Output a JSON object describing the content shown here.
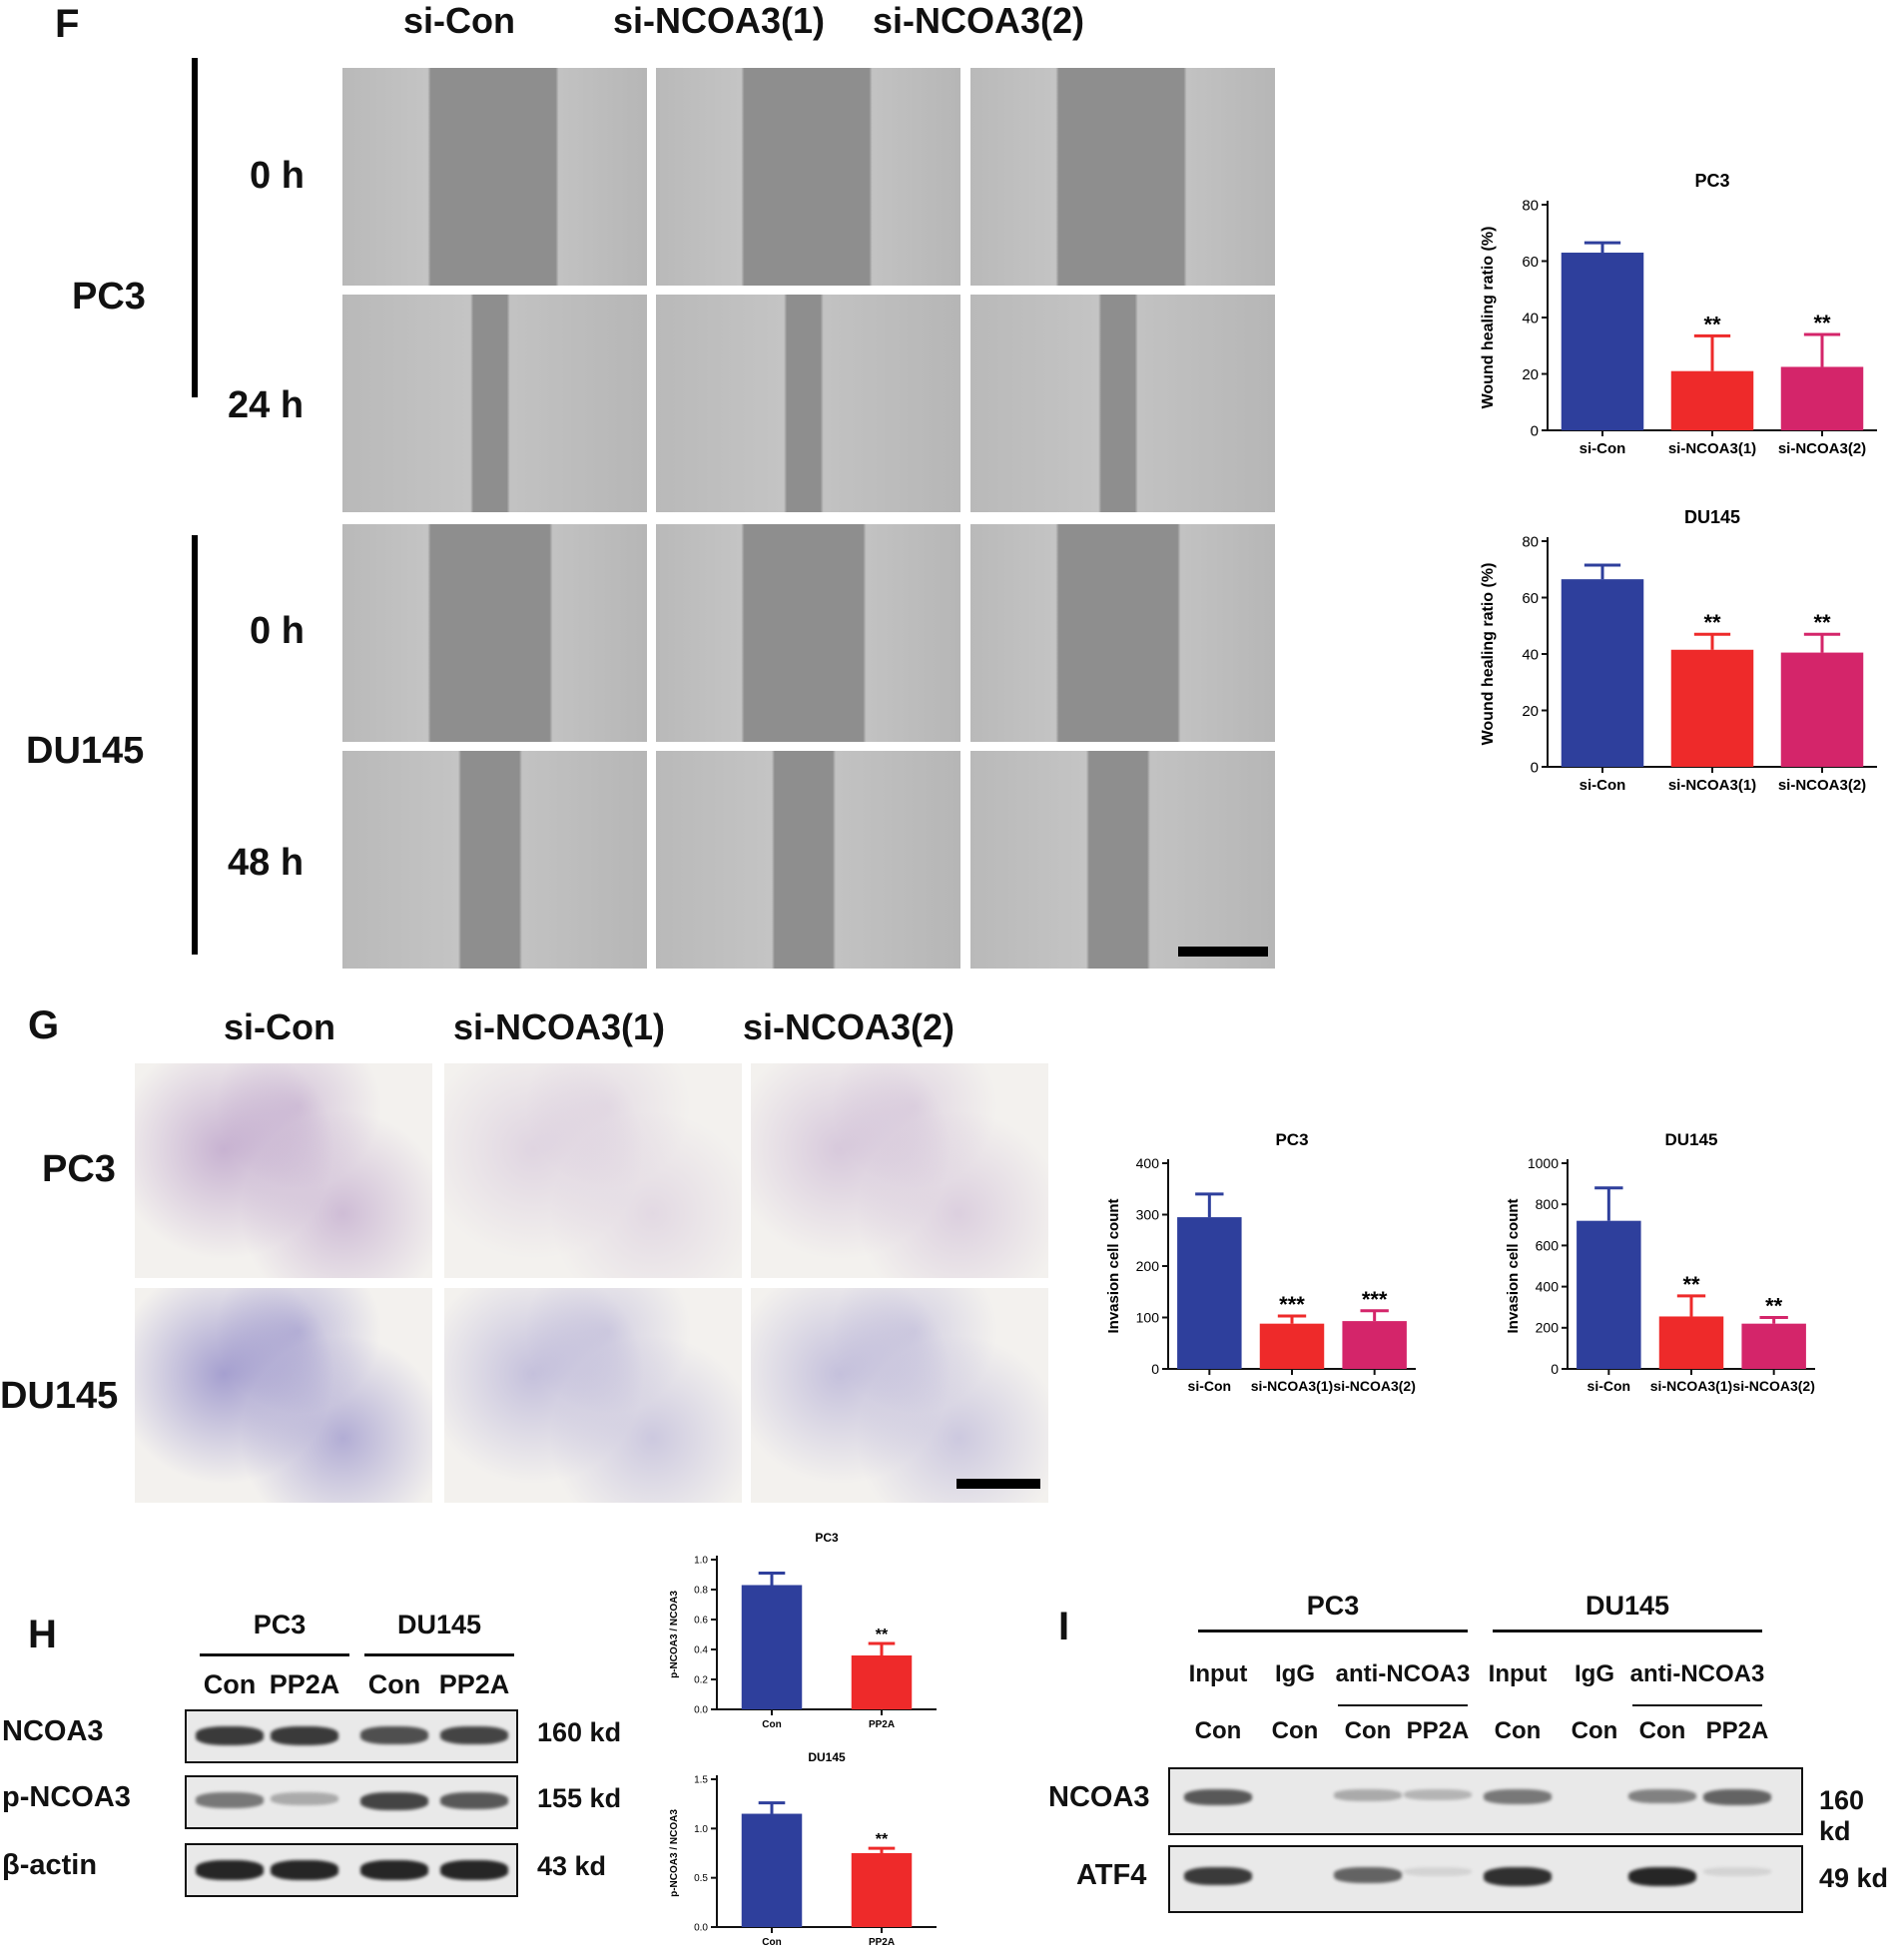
{
  "panels": {
    "F": {
      "letter": "F",
      "columns": [
        "si-Con",
        "si-NCOA3(1)",
        "si-NCOA3(2)"
      ],
      "cell_lines": [
        "PC3",
        "DU145"
      ],
      "timepoints": [
        "0 h",
        "24 h",
        "0 h",
        "48 h"
      ]
    },
    "G": {
      "letter": "G",
      "columns": [
        "si-Con",
        "si-NCOA3(1)",
        "si-NCOA3(2)"
      ],
      "rows": [
        "PC3",
        "DU145"
      ]
    },
    "H": {
      "letter": "H",
      "groups": [
        "PC3",
        "DU145"
      ],
      "lanes": [
        "Con",
        "PP2A",
        "Con",
        "PP2A"
      ],
      "proteins": [
        "NCOA3",
        "p-NCOA3",
        "β-actin"
      ],
      "sizes": [
        "160 kd",
        "155 kd",
        "43 kd"
      ],
      "band_intensity": [
        [
          0.85,
          0.85,
          0.75,
          0.8
        ],
        [
          0.55,
          0.3,
          0.8,
          0.7
        ],
        [
          0.95,
          0.95,
          0.95,
          0.95
        ]
      ]
    },
    "I": {
      "letter": "I",
      "groups": [
        "PC3",
        "DU145"
      ],
      "sub_headers": [
        "Input",
        "IgG",
        "anti-NCOA3",
        "Input",
        "IgG",
        "anti-NCOA3"
      ],
      "lanes": [
        "Con",
        "Con",
        "Con",
        "PP2A",
        "Con",
        "Con",
        "Con",
        "PP2A"
      ],
      "proteins": [
        "NCOA3",
        "ATF4"
      ],
      "sizes": [
        "160 kd",
        "49 kd"
      ],
      "band_intensity": [
        [
          0.7,
          0,
          0.3,
          0.25,
          0.55,
          0,
          0.5,
          0.65
        ],
        [
          0.85,
          0,
          0.65,
          0.1,
          0.9,
          0,
          0.95,
          0.1
        ]
      ]
    }
  },
  "colors": {
    "blue": "#2e3f9c",
    "red": "#ee2a2a",
    "pink": "#d4256a",
    "axis": "#111111"
  },
  "chart_data": [
    {
      "id": "wound-pc3",
      "type": "bar",
      "title": "PC3",
      "categories": [
        "si-Con",
        "si-NCOA3(1)",
        "si-NCOA3(2)"
      ],
      "values": [
        63,
        21,
        22.5
      ],
      "errors": [
        3.5,
        12.5,
        11.5
      ],
      "significance": [
        "",
        "**",
        "**"
      ],
      "ylabel": "Wound healing ratio (%)",
      "ylim": [
        0,
        80
      ],
      "yticks": [
        0,
        20,
        40,
        60,
        80
      ],
      "ytick_labels": [
        "0",
        "20",
        "40",
        "60",
        "80"
      ],
      "colors": [
        "#2e3f9c",
        "#ee2a2a",
        "#d4256a"
      ]
    },
    {
      "id": "wound-du145",
      "type": "bar",
      "title": "DU145",
      "categories": [
        "si-Con",
        "si-NCOA3(1)",
        "si-NCOA3(2)"
      ],
      "values": [
        66.5,
        41.5,
        40.5
      ],
      "errors": [
        5,
        5.5,
        6.5
      ],
      "significance": [
        "",
        "**",
        "**"
      ],
      "ylabel": "Wound healing ratio (%)",
      "ylim": [
        0,
        80
      ],
      "yticks": [
        0,
        20,
        40,
        60,
        80
      ],
      "ytick_labels": [
        "0",
        "20",
        "40",
        "60",
        "80"
      ],
      "colors": [
        "#2e3f9c",
        "#ee2a2a",
        "#d4256a"
      ]
    },
    {
      "id": "invasion-pc3",
      "type": "bar",
      "title": "PC3",
      "categories": [
        "si-Con",
        "si-NCOA3(1)",
        "si-NCOA3(2)"
      ],
      "values": [
        295,
        88,
        93
      ],
      "errors": [
        45,
        15,
        20
      ],
      "significance": [
        "",
        "***",
        "***"
      ],
      "ylabel": "Invasion cell count",
      "ylim": [
        0,
        400
      ],
      "yticks": [
        0,
        100,
        200,
        300,
        400
      ],
      "ytick_labels": [
        "0",
        "100",
        "200",
        "300",
        "400"
      ],
      "colors": [
        "#2e3f9c",
        "#ee2a2a",
        "#d4256a"
      ]
    },
    {
      "id": "invasion-du145",
      "type": "bar",
      "title": "DU145",
      "categories": [
        "si-Con",
        "si-NCOA3(1)",
        "si-NCOA3(2)"
      ],
      "values": [
        720,
        255,
        220
      ],
      "errors": [
        160,
        100,
        30
      ],
      "significance": [
        "",
        "**",
        "**"
      ],
      "ylabel": "Invasion cell count",
      "ylim": [
        0,
        1000
      ],
      "yticks": [
        0,
        200,
        400,
        600,
        800,
        1000
      ],
      "ytick_labels": [
        "0",
        "200",
        "400",
        "600",
        "800",
        "1000"
      ],
      "colors": [
        "#2e3f9c",
        "#ee2a2a",
        "#d4256a"
      ]
    },
    {
      "id": "pncoa3-pc3",
      "type": "bar",
      "title": "PC3",
      "categories": [
        "Con",
        "PP2A"
      ],
      "values": [
        0.83,
        0.36
      ],
      "errors": [
        0.08,
        0.08
      ],
      "significance": [
        "",
        "**"
      ],
      "ylabel": "p-NCOA3 / NCOA3",
      "ylim": [
        0,
        1.0
      ],
      "yticks": [
        0,
        0.2,
        0.4,
        0.6,
        0.8,
        1.0
      ],
      "ytick_labels": [
        "0.0",
        "0.2",
        "0.4",
        "0.6",
        "0.8",
        "1.0"
      ],
      "colors": [
        "#2e3f9c",
        "#ee2a2a"
      ]
    },
    {
      "id": "pncoa3-du145",
      "type": "bar",
      "title": "DU145",
      "categories": [
        "Con",
        "PP2A"
      ],
      "values": [
        1.15,
        0.75
      ],
      "errors": [
        0.11,
        0.05
      ],
      "significance": [
        "",
        "**"
      ],
      "ylabel": "p-NCOA3 / NCOA3",
      "ylim": [
        0,
        1.5
      ],
      "yticks": [
        0,
        0.5,
        1.0,
        1.5
      ],
      "ytick_labels": [
        "0.0",
        "0.5",
        "1.0",
        "1.5"
      ],
      "colors": [
        "#2e3f9c",
        "#ee2a2a"
      ]
    }
  ]
}
